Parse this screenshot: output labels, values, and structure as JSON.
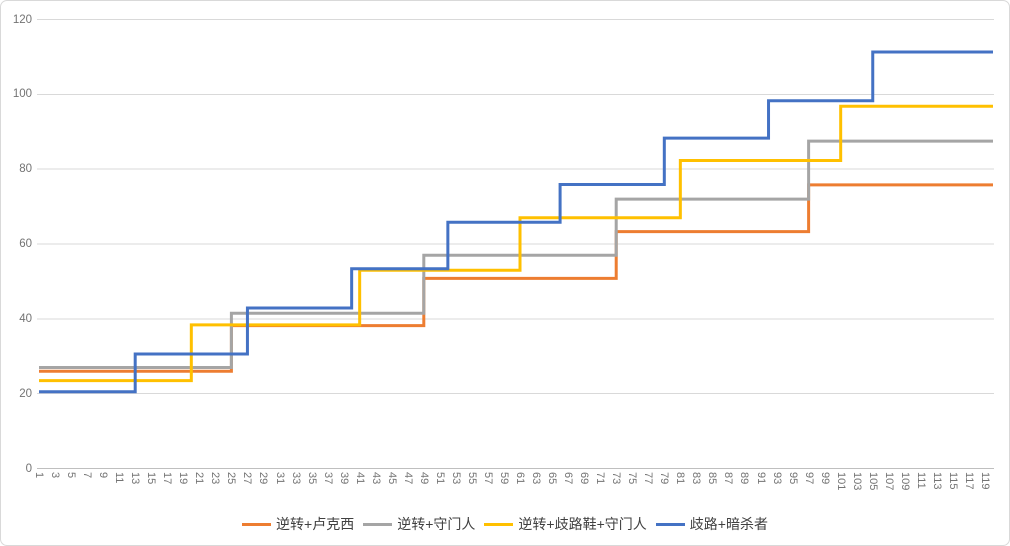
{
  "chart_data": {
    "type": "line",
    "subtype": "step",
    "title": "",
    "grid": true,
    "legend_position": "bottom",
    "x_axis": {
      "tick_labels": [
        1,
        3,
        5,
        7,
        9,
        11,
        13,
        15,
        17,
        19,
        21,
        23,
        25,
        27,
        29,
        31,
        33,
        35,
        37,
        39,
        41,
        43,
        45,
        47,
        49,
        51,
        53,
        55,
        57,
        59,
        61,
        63,
        65,
        67,
        69,
        71,
        73,
        75,
        77,
        79,
        81,
        83,
        85,
        87,
        89,
        91,
        93,
        95,
        97,
        99,
        101,
        103,
        105,
        107,
        109,
        111,
        113,
        115,
        117,
        119
      ],
      "data_x_start": 1,
      "data_x_end": 120
    },
    "y_axis": {
      "ticks": [
        0,
        20,
        40,
        60,
        80,
        100,
        120
      ],
      "range": [
        0,
        120
      ]
    },
    "series": [
      {
        "name": "逆转+卢克西",
        "color": "#ED7D31",
        "steps": [
          [
            1,
            26
          ],
          [
            25,
            38.2
          ],
          [
            49,
            50.8
          ],
          [
            73,
            63.3
          ],
          [
            97,
            75.8
          ]
        ]
      },
      {
        "name": "逆转+守门人",
        "color": "#A5A5A5",
        "steps": [
          [
            1,
            27
          ],
          [
            25,
            41.5
          ],
          [
            49,
            57
          ],
          [
            73,
            72
          ],
          [
            97,
            87.5
          ]
        ]
      },
      {
        "name": "逆转+歧路鞋+守门人",
        "color": "#FFC000",
        "steps": [
          [
            1,
            23.5
          ],
          [
            20,
            38.4
          ],
          [
            41,
            53
          ],
          [
            61,
            67
          ],
          [
            81,
            82.3
          ],
          [
            101,
            96.8
          ]
        ]
      },
      {
        "name": "歧路+暗杀者",
        "color": "#4472C4",
        "steps": [
          [
            1,
            20.5
          ],
          [
            13,
            30.6
          ],
          [
            27,
            42.9
          ],
          [
            40,
            53.4
          ],
          [
            52,
            65.8
          ],
          [
            66,
            75.9
          ],
          [
            79,
            88.3
          ],
          [
            92,
            98.3
          ],
          [
            105,
            111.3
          ]
        ]
      }
    ],
    "colors": {
      "gridline": "#D9D9D9",
      "axis_line": "#BFBFBF",
      "tick_label": "#737373",
      "legend_text": "#404040",
      "background": "#FFFFFF",
      "border": "#D9D9D9"
    }
  }
}
